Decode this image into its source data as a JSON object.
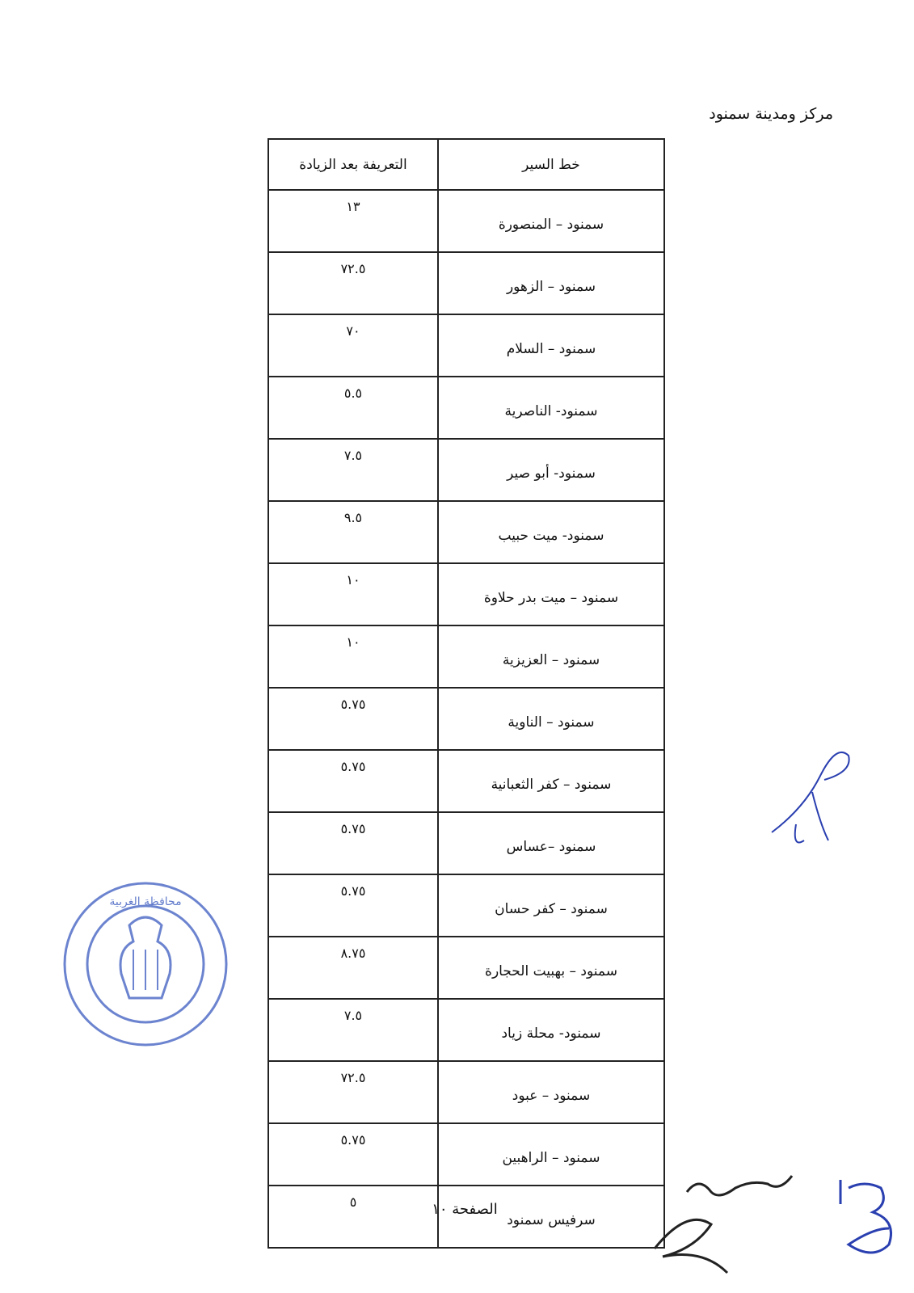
{
  "heading": "مركز ومدينة سمنود",
  "table": {
    "headers": {
      "route": "خط السير",
      "fare": "التعريفة بعد الزيادة"
    },
    "rows": [
      {
        "route": "سمنود – المنصورة",
        "fare": "١٣"
      },
      {
        "route": "سمنود – الزهور",
        "fare": "٧٢.٥"
      },
      {
        "route": "سمنود – السلام",
        "fare": "٧٠"
      },
      {
        "route": "سمنود- الناصرية",
        "fare": "٥.٥"
      },
      {
        "route": "سمنود- أبو صير",
        "fare": "٧.٥"
      },
      {
        "route": "سمنود- ميت حبيب",
        "fare": "٩.٥"
      },
      {
        "route": "سمنود – ميت بدر حلاوة",
        "fare": "١٠"
      },
      {
        "route": "سمنود – العزيزية",
        "fare": "١٠"
      },
      {
        "route": "سمنود – الناوية",
        "fare": "٥.٧٥"
      },
      {
        "route": "سمنود – كفر الثعبانية",
        "fare": "٥.٧٥"
      },
      {
        "route": "سمنود –عساس",
        "fare": "٥.٧٥"
      },
      {
        "route": "سمنود – كفر حسان",
        "fare": "٥.٧٥"
      },
      {
        "route": "سمنود – بهبيت الحجارة",
        "fare": "٨.٧٥"
      },
      {
        "route": "سمنود- محلة زياد",
        "fare": "٧.٥"
      },
      {
        "route": "سمنود – عبود",
        "fare": "٧٢.٥"
      },
      {
        "route": "سمنود – الراهبين",
        "fare": "٥.٧٥"
      },
      {
        "route": "سرفيس سمنود",
        "fare": "٥"
      }
    ]
  },
  "footer": "الصفحة ١٠",
  "stamp": {
    "text": "محافظة الغربية",
    "color": "#3b5bbf"
  },
  "signature_color": "#2a3fb0"
}
